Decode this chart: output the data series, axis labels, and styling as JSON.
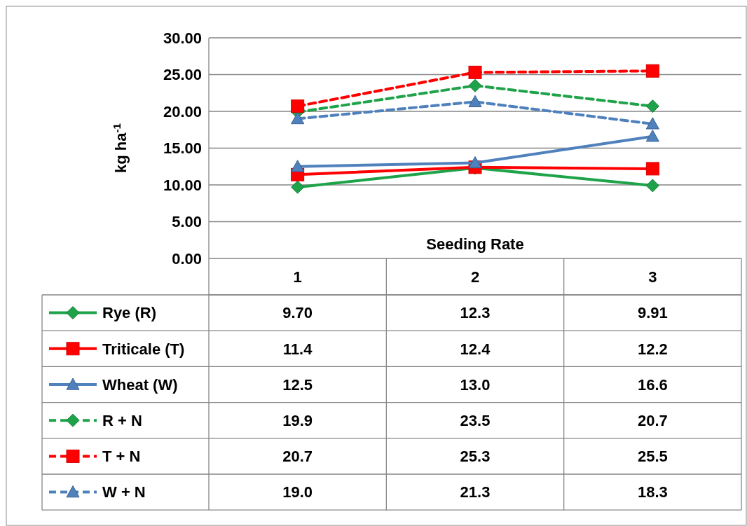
{
  "chart_data": {
    "type": "line",
    "xlabel": "Seeding Rate",
    "ylabel": "kg ha$^{-1}$",
    "categories": [
      "1",
      "2",
      "3"
    ],
    "ylim": [
      0,
      30
    ],
    "yticks": [
      {
        "value": 0,
        "label": "0.00"
      },
      {
        "value": 5,
        "label": "5.00"
      },
      {
        "value": 10,
        "label": "10.00"
      },
      {
        "value": 15,
        "label": "15.00"
      },
      {
        "value": 20,
        "label": "20.00"
      },
      {
        "value": 25,
        "label": "25.00"
      },
      {
        "value": 30,
        "label": "30.00"
      }
    ],
    "grid": "y",
    "legend": "bottom",
    "series": [
      {
        "name": "Rye (R)",
        "color": "#1fa34a",
        "values": [
          9.7,
          12.3,
          9.91
        ],
        "value_labels": [
          "9.70",
          "12.3",
          "9.91"
        ],
        "marker": "diamond",
        "line_style": "solid"
      },
      {
        "name": "Triticale (T)",
        "color": "#ff0000",
        "values": [
          11.4,
          12.4,
          12.2
        ],
        "value_labels": [
          "11.4",
          "12.4",
          "12.2"
        ],
        "marker": "square",
        "line_style": "solid"
      },
      {
        "name": "Wheat (W)",
        "color": "#4f81bd",
        "values": [
          12.5,
          13.0,
          16.6
        ],
        "value_labels": [
          "12.5",
          "13.0",
          "16.6"
        ],
        "marker": "triangle",
        "line_style": "solid"
      },
      {
        "name": "R + N",
        "color": "#1fa34a",
        "values": [
          19.9,
          23.5,
          20.7
        ],
        "value_labels": [
          "19.9",
          "23.5",
          "20.7"
        ],
        "marker": "diamond",
        "line_style": "dashed"
      },
      {
        "name": "T + N",
        "color": "#ff0000",
        "values": [
          20.7,
          25.3,
          25.5
        ],
        "value_labels": [
          "20.7",
          "25.3",
          "25.5"
        ],
        "marker": "square",
        "line_style": "dashed"
      },
      {
        "name": "W + N",
        "color": "#4f81bd",
        "values": [
          19.0,
          21.3,
          18.3
        ],
        "value_labels": [
          "19.0",
          "21.3",
          "18.3"
        ],
        "marker": "triangle",
        "line_style": "dashed"
      }
    ]
  }
}
